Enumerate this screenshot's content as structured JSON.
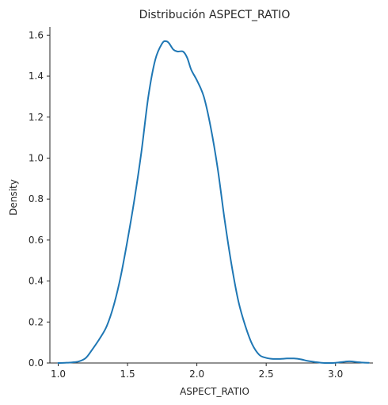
{
  "chart_data": {
    "type": "line",
    "title": "Distribución ASPECT_RATIO",
    "xlabel": "ASPECT_RATIO",
    "ylabel": "Density",
    "xlim": [
      0.94,
      3.27
    ],
    "ylim": [
      0,
      1.64
    ],
    "xticks": [
      1.0,
      1.5,
      2.0,
      2.5,
      3.0
    ],
    "xtick_labels": [
      "1.0",
      "1.5",
      "2.0",
      "2.5",
      "3.0"
    ],
    "yticks": [
      0.0,
      0.2,
      0.4,
      0.6,
      0.8,
      1.0,
      1.2,
      1.4,
      1.6
    ],
    "ytick_labels": [
      "0.0",
      "0.2",
      "0.4",
      "0.6",
      "0.8",
      "1.0",
      "1.2",
      "1.4",
      "1.6"
    ],
    "grid": false,
    "line_color": "#1f77b4",
    "series": [
      {
        "x": [
          1.0,
          1.05,
          1.1,
          1.15,
          1.2,
          1.25,
          1.3,
          1.35,
          1.4,
          1.45,
          1.5,
          1.55,
          1.6,
          1.65,
          1.7,
          1.75,
          1.78,
          1.8,
          1.83,
          1.86,
          1.9,
          1.93,
          1.96,
          2.0,
          2.05,
          2.1,
          2.15,
          2.2,
          2.25,
          2.3,
          2.35,
          2.4,
          2.45,
          2.5,
          2.55,
          2.6,
          2.65,
          2.7,
          2.75,
          2.8,
          2.85,
          2.9,
          2.95,
          3.0,
          3.05,
          3.1,
          3.15,
          3.2,
          3.24
        ],
        "y": [
          0.0,
          0.001,
          0.003,
          0.008,
          0.025,
          0.07,
          0.12,
          0.18,
          0.28,
          0.42,
          0.6,
          0.8,
          1.03,
          1.3,
          1.48,
          1.56,
          1.57,
          1.56,
          1.53,
          1.52,
          1.52,
          1.49,
          1.43,
          1.38,
          1.3,
          1.15,
          0.95,
          0.7,
          0.48,
          0.3,
          0.18,
          0.09,
          0.04,
          0.025,
          0.02,
          0.02,
          0.022,
          0.022,
          0.018,
          0.01,
          0.005,
          0.001,
          0.0,
          0.001,
          0.005,
          0.008,
          0.005,
          0.002,
          0.001
        ]
      }
    ]
  }
}
